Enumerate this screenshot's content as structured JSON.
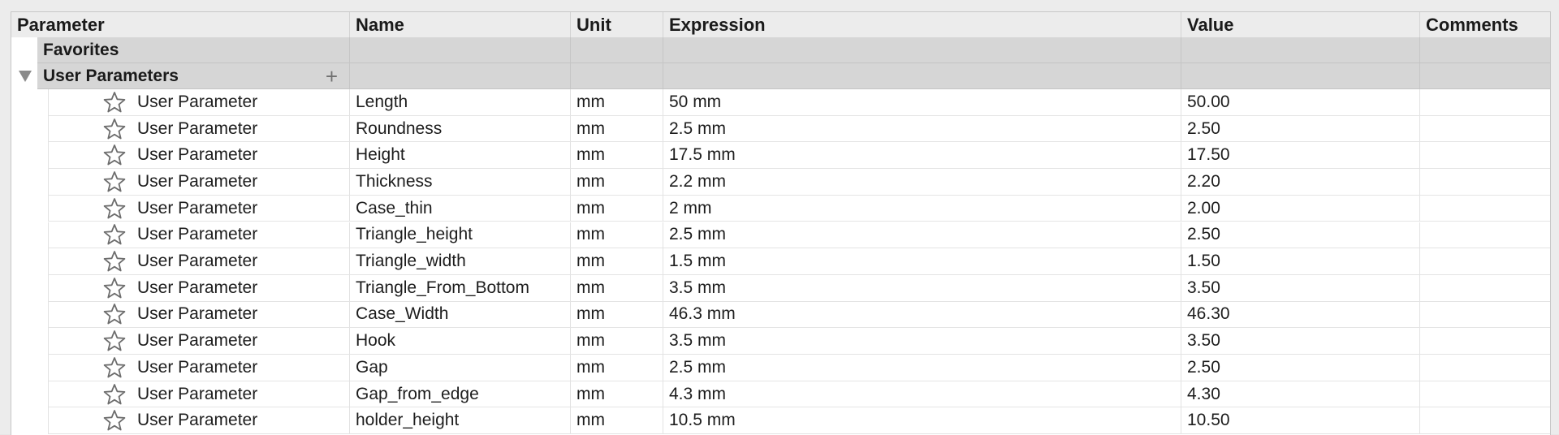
{
  "columns": [
    "Parameter",
    "Name",
    "Unit",
    "Expression",
    "Value",
    "Comments"
  ],
  "groups": {
    "favorites": {
      "label": "Favorites"
    },
    "user_parameters": {
      "label": "User Parameters",
      "add_icon": "plus-icon",
      "expand_icon": "triangle-down-icon"
    }
  },
  "rows": [
    {
      "param": "User Parameter",
      "name": "Length",
      "unit": "mm",
      "expression": "50 mm",
      "value": "50.00",
      "comments": ""
    },
    {
      "param": "User Parameter",
      "name": "Roundness",
      "unit": "mm",
      "expression": "2.5 mm",
      "value": "2.50",
      "comments": ""
    },
    {
      "param": "User Parameter",
      "name": "Height",
      "unit": "mm",
      "expression": "17.5 mm",
      "value": "17.50",
      "comments": ""
    },
    {
      "param": "User Parameter",
      "name": "Thickness",
      "unit": "mm",
      "expression": "2.2 mm",
      "value": "2.20",
      "comments": ""
    },
    {
      "param": "User Parameter",
      "name": "Case_thin",
      "unit": "mm",
      "expression": "2 mm",
      "value": "2.00",
      "comments": ""
    },
    {
      "param": "User Parameter",
      "name": "Triangle_height",
      "unit": "mm",
      "expression": "2.5 mm",
      "value": "2.50",
      "comments": ""
    },
    {
      "param": "User Parameter",
      "name": "Triangle_width",
      "unit": "mm",
      "expression": "1.5 mm",
      "value": "1.50",
      "comments": ""
    },
    {
      "param": "User Parameter",
      "name": "Triangle_From_Bottom",
      "unit": "mm",
      "expression": "3.5 mm",
      "value": "3.50",
      "comments": ""
    },
    {
      "param": "User Parameter",
      "name": "Case_Width",
      "unit": "mm",
      "expression": "46.3 mm",
      "value": "46.30",
      "comments": ""
    },
    {
      "param": "User Parameter",
      "name": "Hook",
      "unit": "mm",
      "expression": "3.5 mm",
      "value": "3.50",
      "comments": ""
    },
    {
      "param": "User Parameter",
      "name": "Gap",
      "unit": "mm",
      "expression": "2.5 mm",
      "value": "2.50",
      "comments": ""
    },
    {
      "param": "User Parameter",
      "name": "Gap_from_edge",
      "unit": "mm",
      "expression": "4.3 mm",
      "value": "4.30",
      "comments": ""
    },
    {
      "param": "User Parameter",
      "name": "holder_height",
      "unit": "mm",
      "expression": "10.5 mm",
      "value": "10.50",
      "comments": ""
    }
  ],
  "colors": {
    "header_bg": "#ececec",
    "group_bg": "#d6d6d6",
    "row_bg": "#ffffff",
    "text": "#1d1d1d"
  }
}
